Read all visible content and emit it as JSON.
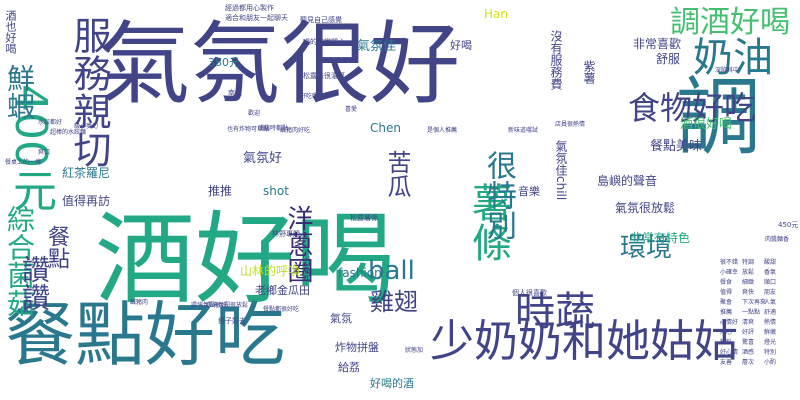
{
  "palette": {
    "purple": "#3b2a73",
    "indigo": "#414487",
    "blue": "#355f8d",
    "steel": "#2a788e",
    "teal": "#21918c",
    "seagreen": "#22a884",
    "green": "#44bf70",
    "lime": "#7ad151",
    "yellowgreen": "#bddf26",
    "yellow": "#d8e219"
  },
  "words": [
    {
      "text": "酒好喝",
      "color": "seagreen",
      "weight": 200,
      "vertical": false,
      "font_size": 100
    },
    {
      "text": "氣氛很好",
      "color": "indigo",
      "weight": 180,
      "vertical": false,
      "font_size": 90
    },
    {
      "text": "調",
      "color": "steel",
      "weight": 170,
      "vertical": true,
      "font_size": 85
    },
    {
      "text": "餐點好吃",
      "color": "steel",
      "weight": 150,
      "vertical": false,
      "font_size": 70
    },
    {
      "text": "少奶奶和她姑姑",
      "color": "indigo",
      "weight": 100,
      "vertical": false,
      "font_size": 44
    },
    {
      "text": "400元",
      "color": "seagreen",
      "weight": 90,
      "vertical": true,
      "font_size": 44
    },
    {
      "text": "服務親切",
      "color": "indigo",
      "weight": 85,
      "vertical": true,
      "font_size": 38
    },
    {
      "text": "時蔬",
      "color": "indigo",
      "weight": 80,
      "vertical": false,
      "font_size": 40
    },
    {
      "text": "奶油",
      "color": "steel",
      "weight": 80,
      "vertical": false,
      "font_size": 40
    },
    {
      "text": "薯條",
      "color": "seagreen",
      "weight": 78,
      "vertical": true,
      "font_size": 40
    },
    {
      "text": "食物好吃",
      "color": "indigo",
      "weight": 70,
      "vertical": false,
      "font_size": 32
    },
    {
      "text": "調酒好喝",
      "color": "green",
      "weight": 65,
      "vertical": false,
      "font_size": 30
    },
    {
      "text": "很特別",
      "color": "steel",
      "weight": 60,
      "vertical": true,
      "font_size": 30
    },
    {
      "text": "鮮蝦",
      "color": "steel",
      "weight": 58,
      "vertical": true,
      "font_size": 28
    },
    {
      "text": "綜合菌菇",
      "color": "seagreen",
      "weight": 55,
      "vertical": true,
      "font_size": 28
    },
    {
      "text": "讚讚",
      "color": "indigo",
      "weight": 55,
      "vertical": true,
      "font_size": 28
    },
    {
      "text": "ball",
      "color": "steel",
      "weight": 52,
      "vertical": false,
      "font_size": 26
    },
    {
      "text": "環境",
      "color": "steel",
      "weight": 50,
      "vertical": false,
      "font_size": 26
    },
    {
      "text": "洋蔥圈",
      "color": "purple",
      "weight": 50,
      "vertical": true,
      "font_size": 26
    },
    {
      "text": "雞翅",
      "color": "indigo",
      "weight": 48,
      "vertical": false,
      "font_size": 24
    },
    {
      "text": "苦瓜",
      "color": "indigo",
      "weight": 45,
      "vertical": true,
      "font_size": 24
    },
    {
      "text": "餐點",
      "color": "indigo",
      "weight": 42,
      "vertical": true,
      "font_size": 22
    },
    {
      "text": "酒很好喝",
      "color": "green",
      "weight": 30,
      "vertical": false,
      "font_size": 13
    },
    {
      "text": "餐點美味",
      "color": "indigo",
      "weight": 30,
      "vertical": false,
      "font_size": 13
    },
    {
      "text": "氣氛佳",
      "color": "steel",
      "weight": 30,
      "vertical": false,
      "font_size": 13
    },
    {
      "text": "氣氛好",
      "color": "indigo",
      "weight": 30,
      "vertical": false,
      "font_size": 13
    },
    {
      "text": "氣氛很放鬆",
      "color": "indigo",
      "weight": 28,
      "vertical": false,
      "font_size": 12
    },
    {
      "text": "氣氛佳chill",
      "color": "indigo",
      "weight": 28,
      "vertical": true,
      "font_size": 12
    },
    {
      "text": "島嶼的聲音",
      "color": "indigo",
      "weight": 28,
      "vertical": false,
      "font_size": 12
    },
    {
      "text": "山林的呼喚",
      "color": "yellowgreen",
      "weight": 28,
      "vertical": false,
      "font_size": 12
    },
    {
      "text": "老鄉金瓜田",
      "color": "indigo",
      "weight": 26,
      "vertical": false,
      "font_size": 11
    },
    {
      "text": "非常有特色",
      "color": "seagreen",
      "weight": 26,
      "vertical": false,
      "font_size": 12
    },
    {
      "text": "非常喜歡",
      "color": "indigo",
      "weight": 26,
      "vertical": false,
      "font_size": 12
    },
    {
      "text": "沒有服務費",
      "color": "indigo",
      "weight": 25,
      "vertical": true,
      "font_size": 12
    },
    {
      "text": "紅茶羅尼",
      "color": "steel",
      "weight": 24,
      "vertical": false,
      "font_size": 12
    },
    {
      "text": "值得再訪",
      "color": "indigo",
      "weight": 24,
      "vertical": false,
      "font_size": 12
    },
    {
      "text": "推推",
      "color": "indigo",
      "weight": 22,
      "vertical": false,
      "font_size": 12
    },
    {
      "text": "音樂",
      "color": "indigo",
      "weight": 22,
      "vertical": false,
      "font_size": 11
    },
    {
      "text": "shot",
      "color": "steel",
      "weight": 22,
      "vertical": false,
      "font_size": 12
    },
    {
      "text": "fashion",
      "color": "steel",
      "weight": 22,
      "vertical": false,
      "font_size": 12
    },
    {
      "text": "Chen",
      "color": "steel",
      "weight": 22,
      "vertical": false,
      "font_size": 12
    },
    {
      "text": "Han",
      "color": "yellow",
      "weight": 20,
      "vertical": false,
      "font_size": 12
    },
    {
      "text": "380元",
      "color": "steel",
      "weight": 22,
      "vertical": false,
      "font_size": 11
    },
    {
      "text": "舒服",
      "color": "indigo",
      "weight": 22,
      "vertical": false,
      "font_size": 12
    },
    {
      "text": "好喝",
      "color": "indigo",
      "weight": 22,
      "vertical": false,
      "font_size": 11
    },
    {
      "text": "紫薯",
      "color": "indigo",
      "weight": 22,
      "vertical": true,
      "font_size": 12
    },
    {
      "text": "好喝的酒",
      "color": "steel",
      "weight": 22,
      "vertical": false,
      "font_size": 11
    },
    {
      "text": "給荔",
      "color": "indigo",
      "weight": 20,
      "vertical": false,
      "font_size": 11
    },
    {
      "text": "氣氛",
      "color": "indigo",
      "weight": 20,
      "vertical": false,
      "font_size": 11
    },
    {
      "text": "炸物拼盤",
      "color": "indigo",
      "weight": 20,
      "vertical": false,
      "font_size": 11
    },
    {
      "text": "370元",
      "color": "indigo",
      "weight": 20,
      "vertical": true,
      "font_size": 9
    },
    {
      "text": "酒也好喝",
      "color": "indigo",
      "weight": 20,
      "vertical": true,
      "font_size": 11
    },
    {
      "text": "450元",
      "color": "indigo",
      "weight": 16,
      "vertical": false,
      "font_size": 7
    },
    {
      "text": "適合和朋友一起聊天",
      "color": "indigo",
      "weight": 14,
      "vertical": false,
      "font_size": 7
    },
    {
      "text": "經過都用心製作",
      "color": "indigo",
      "weight": 14,
      "vertical": false,
      "font_size": 7
    },
    {
      "text": "聽見自己感覺",
      "color": "indigo",
      "weight": 14,
      "vertical": false,
      "font_size": 7
    },
    {
      "text": "喝的非常開心",
      "color": "indigo",
      "weight": 14,
      "vertical": false,
      "font_size": 7
    },
    {
      "text": "松露味很濃厚",
      "color": "indigo",
      "weight": 14,
      "vertical": false,
      "font_size": 7
    },
    {
      "text": "深陷其中",
      "color": "indigo",
      "weight": 14,
      "vertical": false,
      "font_size": 6
    },
    {
      "text": "南瓜",
      "color": "indigo",
      "weight": 12,
      "vertical": false,
      "font_size": 7
    },
    {
      "text": "也有炸物可以點",
      "color": "indigo",
      "weight": 12,
      "vertical": false,
      "font_size": 6
    },
    {
      "text": "鹹豬肉好吃",
      "color": "indigo",
      "weight": 12,
      "vertical": false,
      "font_size": 6
    },
    {
      "text": "是個人推薦",
      "color": "indigo",
      "weight": 12,
      "vertical": false,
      "font_size": 6
    },
    {
      "text": "店員很熱情",
      "color": "indigo",
      "weight": 12,
      "vertical": false,
      "font_size": 6
    },
    {
      "text": "新味道嚐試",
      "color": "indigo",
      "weight": 12,
      "vertical": false,
      "font_size": 6
    },
    {
      "text": "餐桌上的一塊",
      "color": "indigo",
      "weight": 12,
      "vertical": false,
      "font_size": 6
    },
    {
      "text": "林野專題人",
      "color": "indigo",
      "weight": 12,
      "vertical": false,
      "font_size": 7
    },
    {
      "text": "松露薯條",
      "color": "indigo",
      "weight": 12,
      "vertical": false,
      "font_size": 7
    },
    {
      "text": "個人很喜歡",
      "color": "indigo",
      "weight": 12,
      "vertical": false,
      "font_size": 7
    },
    {
      "text": "搭子好去",
      "color": "indigo",
      "weight": 12,
      "vertical": false,
      "font_size": 7
    },
    {
      "text": "狀態加",
      "color": "indigo",
      "weight": 10,
      "vertical": false,
      "font_size": 6
    },
    {
      "text": "肉醬麵香",
      "color": "indigo",
      "weight": 10,
      "vertical": false,
      "font_size": 6
    },
    {
      "text": "環境氛圍很放鬆",
      "color": "indigo",
      "weight": 12,
      "vertical": false,
      "font_size": 6
    },
    {
      "text": "餐點都很好吃",
      "color": "indigo",
      "weight": 12,
      "vertical": false,
      "font_size": 6
    },
    {
      "text": "環境氛圍很好",
      "color": "indigo",
      "weight": 12,
      "vertical": false,
      "font_size": 6
    },
    {
      "text": "水餃都好",
      "color": "indigo",
      "weight": 10,
      "vertical": false,
      "font_size": 6
    },
    {
      "text": "嘴饞時都點",
      "color": "indigo",
      "weight": 10,
      "vertical": false,
      "font_size": 6
    },
    {
      "text": "爽口",
      "color": "indigo",
      "weight": 10,
      "vertical": false,
      "font_size": 6
    },
    {
      "text": "超棒的水餃麵",
      "color": "indigo",
      "weight": 10,
      "vertical": false,
      "font_size": 6
    },
    {
      "text": "鹹豬肉",
      "color": "indigo",
      "weight": 10,
      "vertical": false,
      "font_size": 6
    },
    {
      "text": "級小夢幻",
      "color": "indigo",
      "weight": 10,
      "vertical": false,
      "font_size": 6
    },
    {
      "text": "好吃喔",
      "color": "indigo",
      "weight": 10,
      "vertical": false,
      "font_size": 6
    },
    {
      "text": "喜愛",
      "color": "indigo",
      "weight": 10,
      "vertical": false,
      "font_size": 6
    },
    {
      "text": "歡迎",
      "color": "indigo",
      "weight": 10,
      "vertical": false,
      "font_size": 6
    },
    {
      "text": "很不錯",
      "color": "indigo",
      "weight": 10,
      "vertical": false,
      "font_size": 6
    },
    {
      "text": "小確幸",
      "color": "indigo",
      "weight": 10,
      "vertical": false,
      "font_size": 6
    },
    {
      "text": "餐食",
      "color": "indigo",
      "weight": 10,
      "vertical": false,
      "font_size": 6
    },
    {
      "text": "值得",
      "color": "indigo",
      "weight": 10,
      "vertical": false,
      "font_size": 6
    },
    {
      "text": "聚會",
      "color": "indigo",
      "weight": 10,
      "vertical": false,
      "font_size": 6
    },
    {
      "text": "推薦",
      "color": "indigo",
      "weight": 10,
      "vertical": false,
      "font_size": 6
    },
    {
      "text": "心情好",
      "color": "indigo",
      "weight": 10,
      "vertical": false,
      "font_size": 6
    },
    {
      "text": "用心",
      "color": "indigo",
      "weight": 10,
      "vertical": false,
      "font_size": 6
    },
    {
      "text": "飲料",
      "color": "indigo",
      "weight": 10,
      "vertical": false,
      "font_size": 6
    },
    {
      "text": "特調",
      "color": "indigo",
      "weight": 10,
      "vertical": false,
      "font_size": 6
    },
    {
      "text": "放鬆",
      "color": "indigo",
      "weight": 10,
      "vertical": false,
      "font_size": 6
    },
    {
      "text": "細緻",
      "color": "indigo",
      "weight": 10,
      "vertical": false,
      "font_size": 6
    },
    {
      "text": "爽快",
      "color": "indigo",
      "weight": 10,
      "vertical": false,
      "font_size": 6
    },
    {
      "text": "下次再來",
      "color": "indigo",
      "weight": 10,
      "vertical": false,
      "font_size": 6
    },
    {
      "text": "一點點",
      "color": "indigo",
      "weight": 10,
      "vertical": false,
      "font_size": 6
    },
    {
      "text": "清爽",
      "color": "indigo",
      "weight": 10,
      "vertical": false,
      "font_size": 6
    },
    {
      "text": "好評",
      "color": "indigo",
      "weight": 10,
      "vertical": false,
      "font_size": 6
    },
    {
      "text": "驚喜",
      "color": "indigo",
      "weight": 10,
      "vertical": false,
      "font_size": 6
    },
    {
      "text": "酸甜",
      "color": "indigo",
      "weight": 10,
      "vertical": false,
      "font_size": 6
    },
    {
      "text": "香氣",
      "color": "indigo",
      "weight": 10,
      "vertical": false,
      "font_size": 6
    },
    {
      "text": "順口",
      "color": "indigo",
      "weight": 10,
      "vertical": false,
      "font_size": 6
    },
    {
      "text": "朋友",
      "color": "indigo",
      "weight": 10,
      "vertical": false,
      "font_size": 6
    },
    {
      "text": "人氣",
      "color": "indigo",
      "weight": 10,
      "vertical": false,
      "font_size": 6
    },
    {
      "text": "舒適",
      "color": "indigo",
      "weight": 10,
      "vertical": false,
      "font_size": 6
    },
    {
      "text": "熱情",
      "color": "indigo",
      "weight": 10,
      "vertical": false,
      "font_size": 6
    },
    {
      "text": "鮮嫩",
      "color": "indigo",
      "weight": 10,
      "vertical": false,
      "font_size": 6
    },
    {
      "text": "燈光",
      "color": "indigo",
      "weight": 10,
      "vertical": false,
      "font_size": 6
    },
    {
      "text": "特別",
      "color": "indigo",
      "weight": 10,
      "vertical": false,
      "font_size": 6
    },
    {
      "text": "小酌",
      "color": "indigo",
      "weight": 10,
      "vertical": false,
      "font_size": 6
    },
    {
      "text": "酒感",
      "color": "indigo",
      "weight": 10,
      "vertical": false,
      "font_size": 6
    },
    {
      "text": "層次",
      "color": "indigo",
      "weight": 10,
      "vertical": false,
      "font_size": 6
    },
    {
      "text": "好心情",
      "color": "indigo",
      "weight": 10,
      "vertical": false,
      "font_size": 6
    },
    {
      "text": "友善",
      "color": "indigo",
      "weight": 10,
      "vertical": false,
      "font_size": 6
    }
  ]
}
